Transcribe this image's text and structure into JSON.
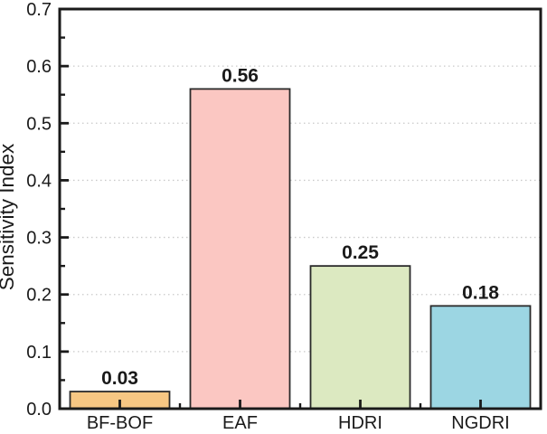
{
  "chart_data": {
    "type": "bar",
    "title": "",
    "xlabel": "",
    "ylabel": "Sensitivity Index",
    "categories": [
      "BF-BOF",
      "EAF",
      "HDRI",
      "NGDRI"
    ],
    "values": [
      0.03,
      0.56,
      0.25,
      0.18
    ],
    "value_labels": [
      "0.03",
      "0.56",
      "0.25",
      "0.18"
    ],
    "bar_colors": [
      "#F7C783",
      "#FBC7C2",
      "#DCE9C1",
      "#9CD6E3"
    ],
    "bar_border_color": "#2A2A2A",
    "ylim": [
      0,
      0.7
    ],
    "ytick_labels": [
      "0.0",
      "0.1",
      "0.2",
      "0.3",
      "0.4",
      "0.5",
      "0.6",
      "0.7"
    ],
    "y_minor_tick_step": 0.05,
    "grid": "horizontal dotted lines at major y ticks",
    "grid_color": "#C9C9C9",
    "axis_color": "#1A1A1A",
    "text_color": "#1A1A1A",
    "legend": "none"
  }
}
